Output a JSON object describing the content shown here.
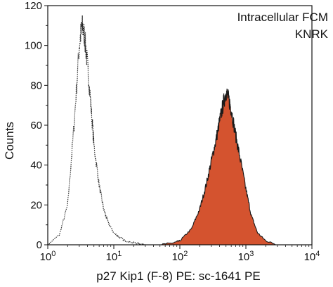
{
  "chart_data": {
    "type": "area",
    "title": "",
    "xlabel": "p27 Kip1 (F-8) PE: sc-1641 PE",
    "ylabel": "Counts",
    "xscale": "log",
    "xlim": [
      1,
      10000
    ],
    "ylim": [
      0,
      120
    ],
    "grid": false,
    "annotations": [
      "Intracellular FCM",
      "KNRK"
    ],
    "xticks": [
      {
        "base": "10",
        "exp": "0"
      },
      {
        "base": "10",
        "exp": "1"
      },
      {
        "base": "10",
        "exp": "2"
      },
      {
        "base": "10",
        "exp": "3"
      },
      {
        "base": "10",
        "exp": "4"
      }
    ],
    "yticks": [
      "0",
      "20",
      "40",
      "60",
      "80",
      "100",
      "120"
    ],
    "series": [
      {
        "style": "dotted-outline",
        "color": "#222222",
        "x": [
          1.0,
          1.5,
          2.0,
          2.5,
          3.0,
          3.3,
          3.6,
          4.0,
          4.5,
          5.0,
          6.0,
          7.0,
          8.0,
          10.0,
          12.0,
          15.0,
          20.0,
          25.0,
          30.0
        ],
        "y": [
          0,
          5,
          20,
          60,
          100,
          110,
          105,
          90,
          70,
          50,
          30,
          18,
          12,
          6,
          4,
          2,
          1,
          0.5,
          0
        ]
      },
      {
        "style": "filled",
        "color": "#d4532f",
        "x": [
          50,
          80,
          100,
          150,
          200,
          250,
          300,
          350,
          400,
          450,
          500,
          550,
          600,
          700,
          800,
          1000,
          1200,
          1500,
          2000,
          3000
        ],
        "y": [
          0,
          1,
          2,
          8,
          18,
          30,
          42,
          52,
          62,
          70,
          77,
          73,
          68,
          55,
          45,
          28,
          15,
          6,
          2,
          0
        ]
      }
    ]
  }
}
